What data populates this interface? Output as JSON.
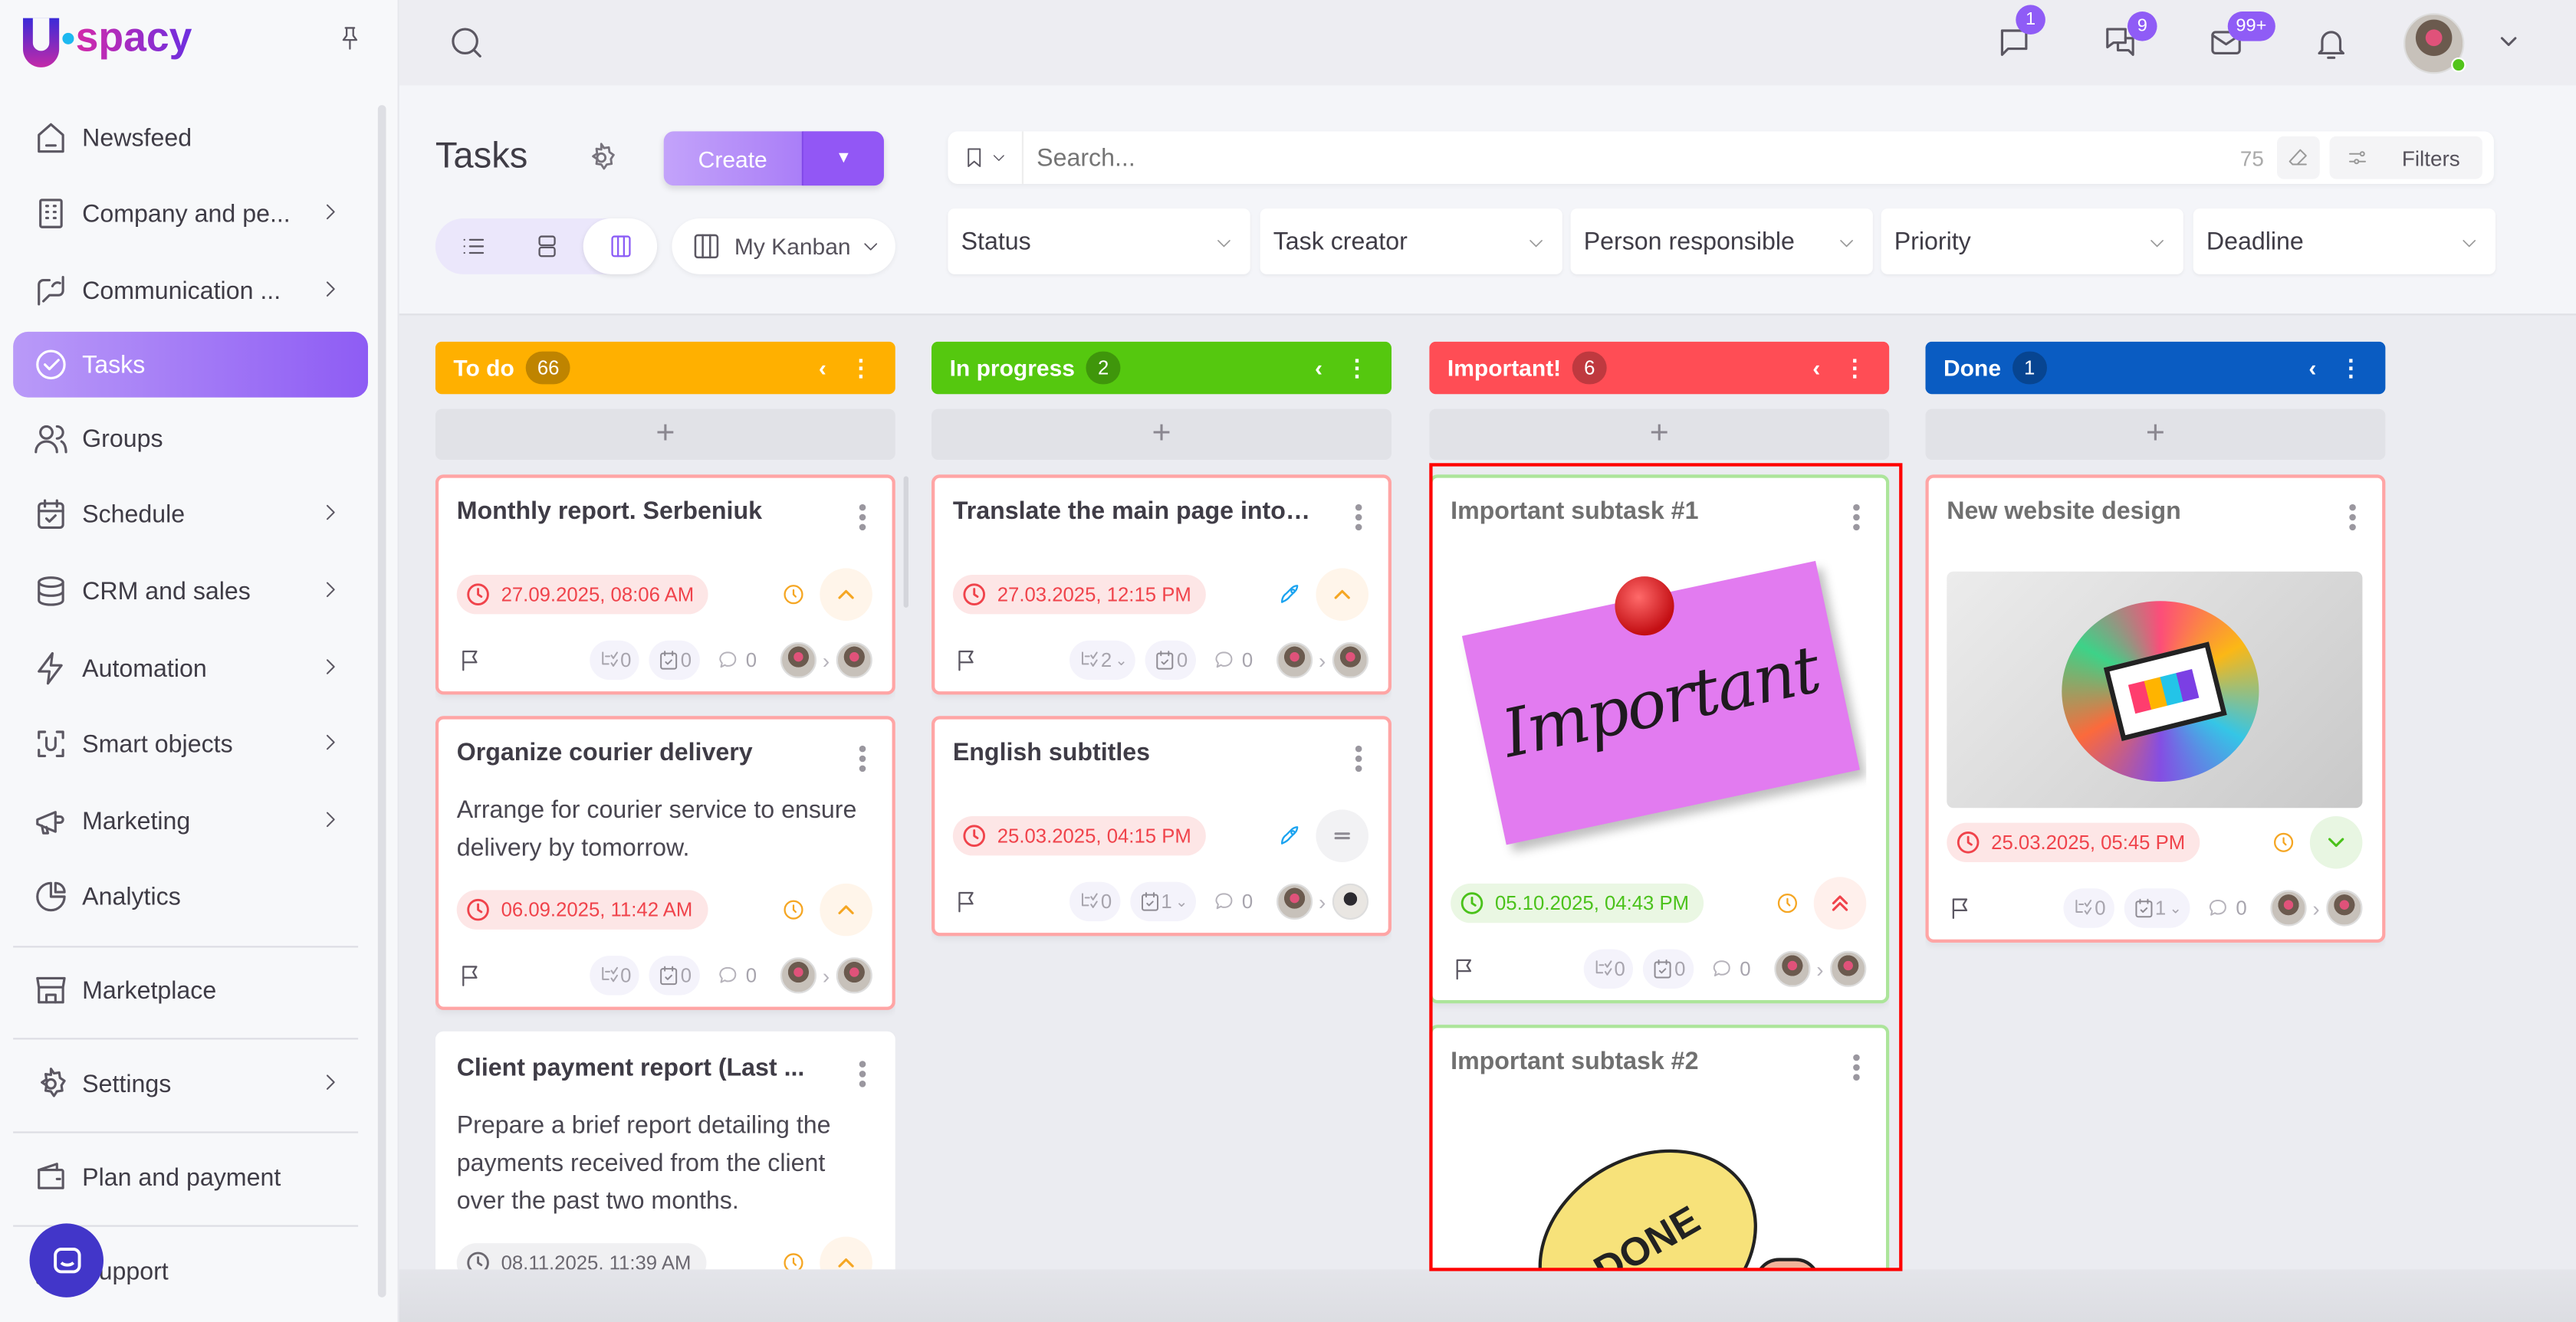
{
  "app": {
    "logo_text": "spacy",
    "logo_letter": "U"
  },
  "sidebar": {
    "items": [
      {
        "label": "Newsfeed",
        "icon": "home-icon",
        "chevron": false
      },
      {
        "label": "Company and pe...",
        "icon": "building-icon",
        "chevron": true
      },
      {
        "label": "Communication ...",
        "icon": "communication-icon",
        "chevron": true
      },
      {
        "label": "Tasks",
        "icon": "tasks-check-icon",
        "chevron": false,
        "active": true
      },
      {
        "label": "Groups",
        "icon": "users-icon",
        "chevron": false
      },
      {
        "label": "Schedule",
        "icon": "calendar-icon",
        "chevron": true
      },
      {
        "label": "CRM and sales",
        "icon": "database-icon",
        "chevron": true
      },
      {
        "label": "Automation",
        "icon": "bolt-icon",
        "chevron": true
      },
      {
        "label": "Smart objects",
        "icon": "scan-icon",
        "chevron": true
      },
      {
        "label": "Marketing",
        "icon": "megaphone-icon",
        "chevron": true
      },
      {
        "label": "Analytics",
        "icon": "pie-chart-icon",
        "chevron": false
      },
      {
        "label": "Marketplace",
        "icon": "store-icon",
        "chevron": false
      },
      {
        "label": "Settings",
        "icon": "gear-icon",
        "chevron": true
      },
      {
        "label": "Plan and payment",
        "icon": "wallet-icon",
        "chevron": false
      },
      {
        "label": "Support",
        "icon": "headset-icon",
        "chevron": false
      }
    ]
  },
  "topbar": {
    "chat_badge": "1",
    "messenger_badge": "9",
    "mail_badge": "99+",
    "online_color": "#52c41a"
  },
  "page": {
    "title": "Tasks",
    "create_label": "Create",
    "kanban_select": "My Kanban",
    "search_placeholder": "Search...",
    "search_count": "75",
    "filters_label": "Filters",
    "filters": [
      "Status",
      "Task creator",
      "Person responsible",
      "Priority",
      "Deadline"
    ]
  },
  "columns": [
    {
      "title": "To do",
      "count": "66",
      "color": "#ffb000",
      "cards": [
        {
          "title": "Monthly report. Serbeniuk",
          "date": "27.09.2025, 08:06 AM",
          "date_style": "red",
          "status_icon": "timer",
          "priority": "high",
          "subtasks": "0",
          "checklists": "0",
          "comments": "0",
          "border": "red"
        },
        {
          "title": "Organize courier delivery",
          "desc": "Arrange for courier service to ensure delivery by tomorrow.",
          "date": "06.09.2025, 11:42 AM",
          "date_style": "red",
          "status_icon": "timer",
          "priority": "high",
          "subtasks": "0",
          "checklists": "0",
          "comments": "0",
          "border": "red"
        },
        {
          "title": "Client payment report (Last ...",
          "desc": "Prepare a brief report detailing the payments received from the client over the past two months.",
          "date": "08.11.2025, 11:39 AM",
          "date_style": "gray",
          "status_icon": "timer",
          "priority": "high",
          "border": "plain"
        }
      ]
    },
    {
      "title": "In progress",
      "count": "2",
      "color": "#55c80f",
      "cards": [
        {
          "title": "Translate the main page into pl",
          "date": "27.03.2025, 12:15 PM",
          "date_style": "red",
          "status_icon": "rocket",
          "priority": "high",
          "subtasks": "2",
          "subtasks_expand": true,
          "checklists": "0",
          "comments": "0",
          "border": "red"
        },
        {
          "title": "English subtitles",
          "date": "25.03.2025, 04:15 PM",
          "date_style": "red",
          "status_icon": "rocket",
          "priority": "medium",
          "subtasks": "0",
          "checklists": "1",
          "checklists_expand": true,
          "comments": "0",
          "border": "red",
          "avatar2": "b"
        }
      ]
    },
    {
      "title": "Important!",
      "count": "6",
      "color": "#ff4d55",
      "cards": [
        {
          "title": "Important subtask #1",
          "muted": true,
          "image": "important-note",
          "image_text": "Important",
          "date": "05.10.2025, 04:43 PM",
          "date_style": "green",
          "status_icon": "timer",
          "priority": "highest",
          "subtasks": "0",
          "checklists": "0",
          "comments": "0",
          "border": "green"
        },
        {
          "title": "Important subtask #2",
          "muted": true,
          "image": "done-note",
          "image_text": "DONE",
          "border": "green"
        }
      ]
    },
    {
      "title": "Done",
      "count": "1",
      "color": "#0a5cc2",
      "cards": [
        {
          "title": "New website design",
          "muted": true,
          "image": "website-design",
          "date": "25.03.2025, 05:45 PM",
          "date_style": "red",
          "status_icon": "timer",
          "priority": "low",
          "subtasks": "0",
          "checklists": "1",
          "checklists_expand": true,
          "comments": "0",
          "border": "red"
        }
      ]
    }
  ]
}
